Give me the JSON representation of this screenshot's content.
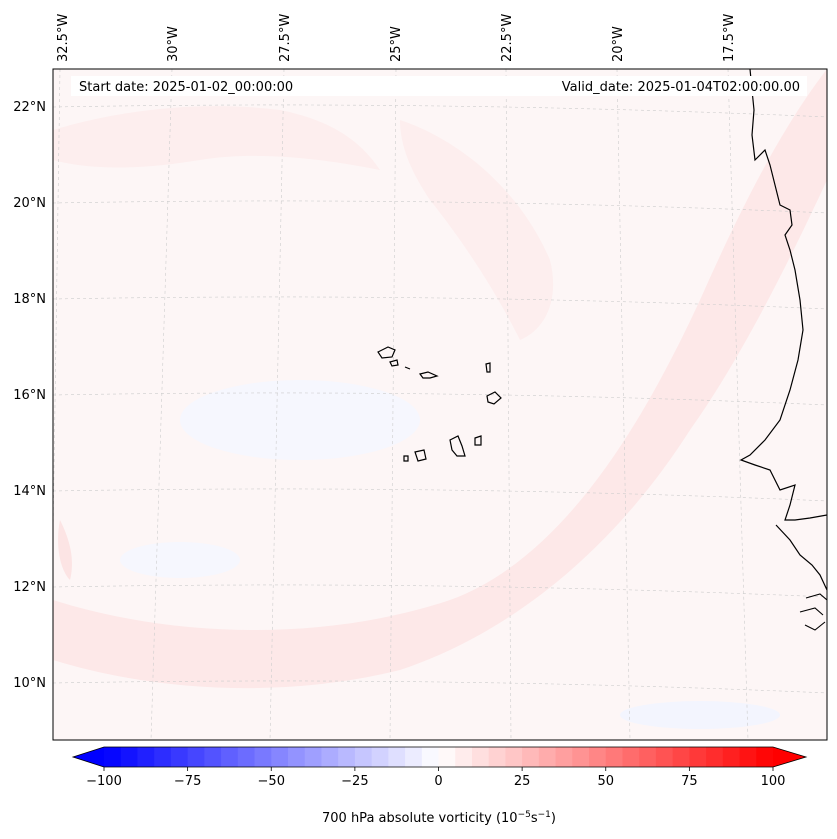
{
  "header": {
    "start_date": "Start date: 2025-01-02_00:00:00",
    "valid_date": "Valid_date: 2025-01-04T02:00:00.00"
  },
  "lon_labels": [
    "32.5°W",
    "30°W",
    "27.5°W",
    "25°W",
    "22.5°W",
    "20°W",
    "17.5°W"
  ],
  "lat_labels": [
    "22°N",
    "20°N",
    "18°N",
    "16°N",
    "14°N",
    "12°N",
    "10°N"
  ],
  "colorbar": {
    "ticks": [
      "−100",
      "−75",
      "−50",
      "−25",
      "0",
      "25",
      "50",
      "75",
      "100"
    ],
    "min": -100,
    "max": 100,
    "step": 5,
    "label": "700 hPa absolute vorticity (10",
    "label_exp1": "−5",
    "label_mid": "s",
    "label_exp2": "−1",
    "label_end": ")",
    "low_color": "#0000ff",
    "high_color": "#ff0000"
  }
}
